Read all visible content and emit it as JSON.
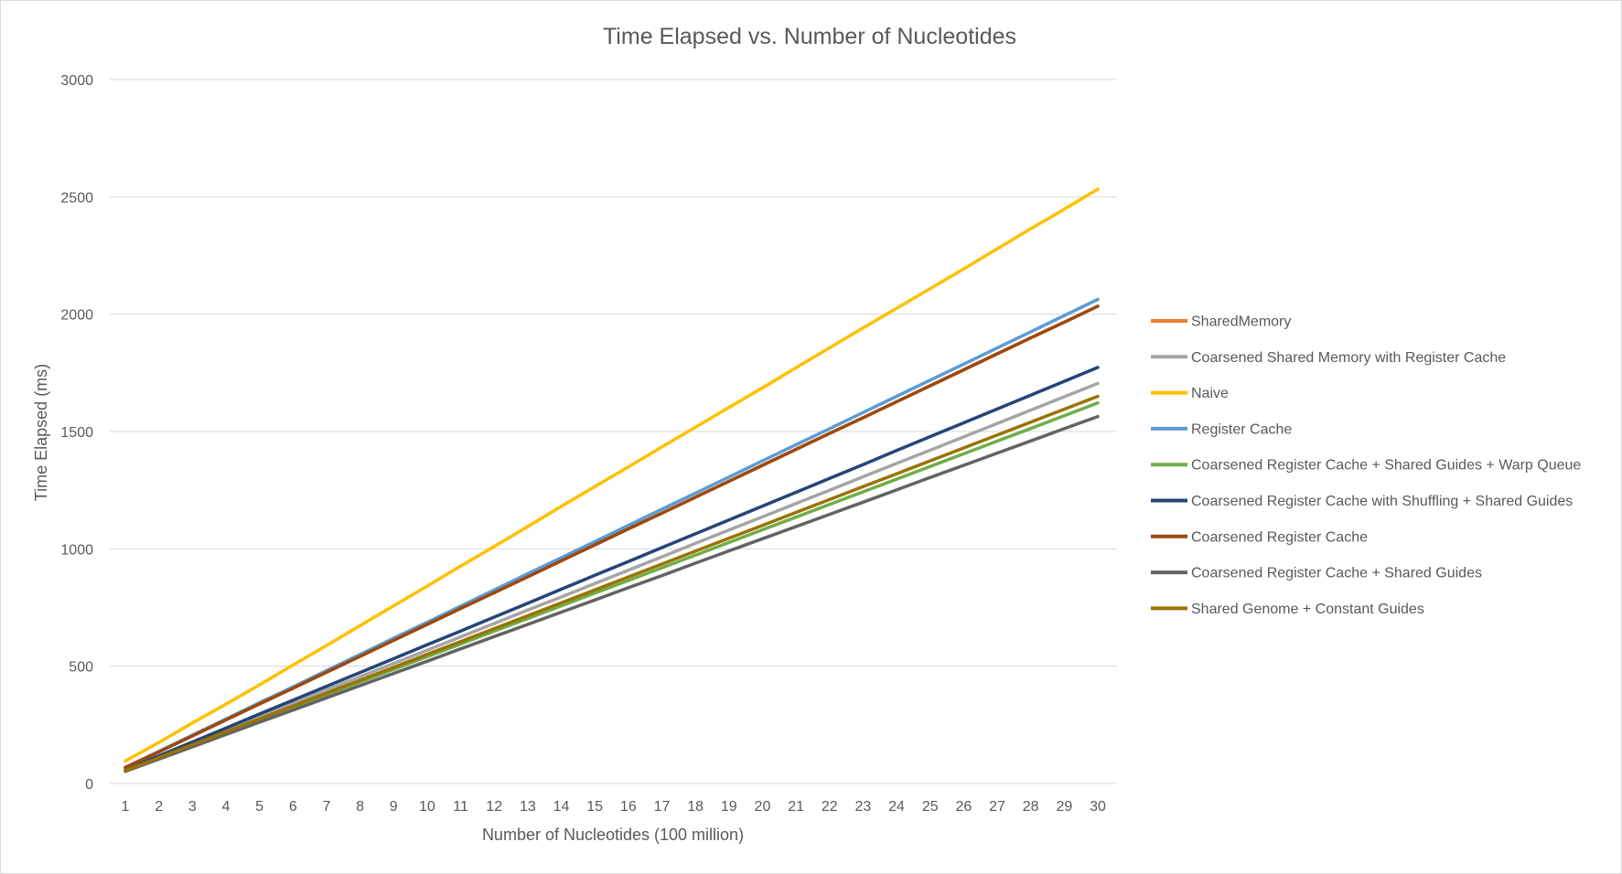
{
  "chart_data": {
    "type": "line",
    "title": "Time Elapsed vs. Number of Nucleotides",
    "xlabel": "Number of Nucleotides (100 million)",
    "ylabel": "Time Elapsed (ms)",
    "ylim": [
      0,
      3000
    ],
    "y_ticks": [
      "0",
      "500",
      "1000",
      "1500",
      "2000",
      "2500",
      "3000"
    ],
    "grid": true,
    "legend_position": "right",
    "x": [
      1,
      2,
      3,
      4,
      5,
      6,
      7,
      8,
      9,
      10,
      11,
      12,
      13,
      14,
      15,
      16,
      17,
      18,
      19,
      20,
      21,
      22,
      23,
      24,
      25,
      26,
      27,
      28,
      29,
      30
    ],
    "x_labels": [
      "1",
      "2",
      "3",
      "4",
      "5",
      "6",
      "7",
      "8",
      "9",
      "10",
      "11",
      "12",
      "13",
      "14",
      "15",
      "16",
      "17",
      "18",
      "19",
      "20",
      "21",
      "22",
      "23",
      "24",
      "25",
      "26",
      "27",
      "28",
      "29",
      "30"
    ],
    "series": [
      {
        "name": "SharedMemory",
        "color": "#ED7D31",
        "values": [
          68,
          135,
          203,
          271,
          339,
          406,
          474,
          542,
          610,
          678,
          746,
          813,
          881,
          949,
          1017,
          1085,
          1152,
          1220,
          1288,
          1356,
          1424,
          1492,
          1559,
          1627,
          1695,
          1763,
          1831,
          1899,
          1966,
          2034
        ]
      },
      {
        "name": "Coarsened Shared Memory with Register Cache",
        "color": "#A5A5A5",
        "values": [
          57,
          114,
          170,
          227,
          284,
          341,
          398,
          455,
          511,
          568,
          625,
          682,
          739,
          795,
          852,
          909,
          966,
          1023,
          1080,
          1136,
          1193,
          1250,
          1307,
          1364,
          1420,
          1477,
          1534,
          1591,
          1648,
          1705
        ]
      },
      {
        "name": "Naive",
        "color": "#FFC000",
        "values": [
          96,
          175,
          258,
          338,
          420,
          505,
          588,
          673,
          757,
          841,
          926,
          1010,
          1095,
          1181,
          1265,
          1349,
          1434,
          1518,
          1603,
          1686,
          1772,
          1857,
          1941,
          2025,
          2109,
          2193,
          2279,
          2364,
          2447,
          2533
        ]
      },
      {
        "name": "Register Cache",
        "color": "#5B9BD5",
        "values": [
          69,
          137,
          206,
          275,
          344,
          412,
          481,
          550,
          619,
          687,
          756,
          825,
          894,
          962,
          1031,
          1100,
          1169,
          1237,
          1306,
          1375,
          1444,
          1512,
          1581,
          1650,
          1719,
          1787,
          1856,
          1925,
          1994,
          2063
        ]
      },
      {
        "name": "Coarsened Register Cache + Shared Guides + Warp Queue",
        "color": "#70AD47",
        "values": [
          54,
          108,
          162,
          216,
          270,
          324,
          378,
          432,
          486,
          540,
          594,
          649,
          703,
          757,
          811,
          865,
          919,
          973,
          1027,
          1081,
          1135,
          1189,
          1243,
          1297,
          1351,
          1405,
          1459,
          1513,
          1567,
          1622
        ]
      },
      {
        "name": "Coarsened Register Cache with Shuffling + Shared Guides",
        "color": "#264478",
        "values": [
          59,
          118,
          177,
          236,
          296,
          355,
          414,
          473,
          532,
          591,
          650,
          709,
          768,
          828,
          887,
          946,
          1005,
          1064,
          1123,
          1182,
          1241,
          1300,
          1359,
          1419,
          1478,
          1537,
          1596,
          1655,
          1714,
          1773
        ]
      },
      {
        "name": "Coarsened Register Cache",
        "color": "#9E480E",
        "values": [
          68,
          135,
          203,
          271,
          339,
          406,
          474,
          542,
          610,
          678,
          746,
          813,
          881,
          949,
          1017,
          1085,
          1152,
          1220,
          1288,
          1356,
          1424,
          1492,
          1559,
          1627,
          1695,
          1763,
          1831,
          1899,
          1966,
          2034
        ]
      },
      {
        "name": "Coarsened Register Cache + Shared Guides",
        "color": "#636363",
        "values": [
          52,
          104,
          156,
          209,
          261,
          313,
          365,
          417,
          469,
          521,
          574,
          626,
          678,
          730,
          782,
          834,
          886,
          939,
          991,
          1043,
          1095,
          1147,
          1199,
          1251,
          1304,
          1356,
          1408,
          1460,
          1512,
          1564
        ]
      },
      {
        "name": "Shared Genome + Constant Guides",
        "color": "#997300",
        "values": [
          55,
          110,
          165,
          220,
          275,
          330,
          385,
          440,
          495,
          550,
          605,
          660,
          715,
          770,
          825,
          880,
          935,
          990,
          1045,
          1100,
          1155,
          1210,
          1265,
          1320,
          1375,
          1430,
          1485,
          1540,
          1595,
          1650
        ]
      }
    ]
  }
}
